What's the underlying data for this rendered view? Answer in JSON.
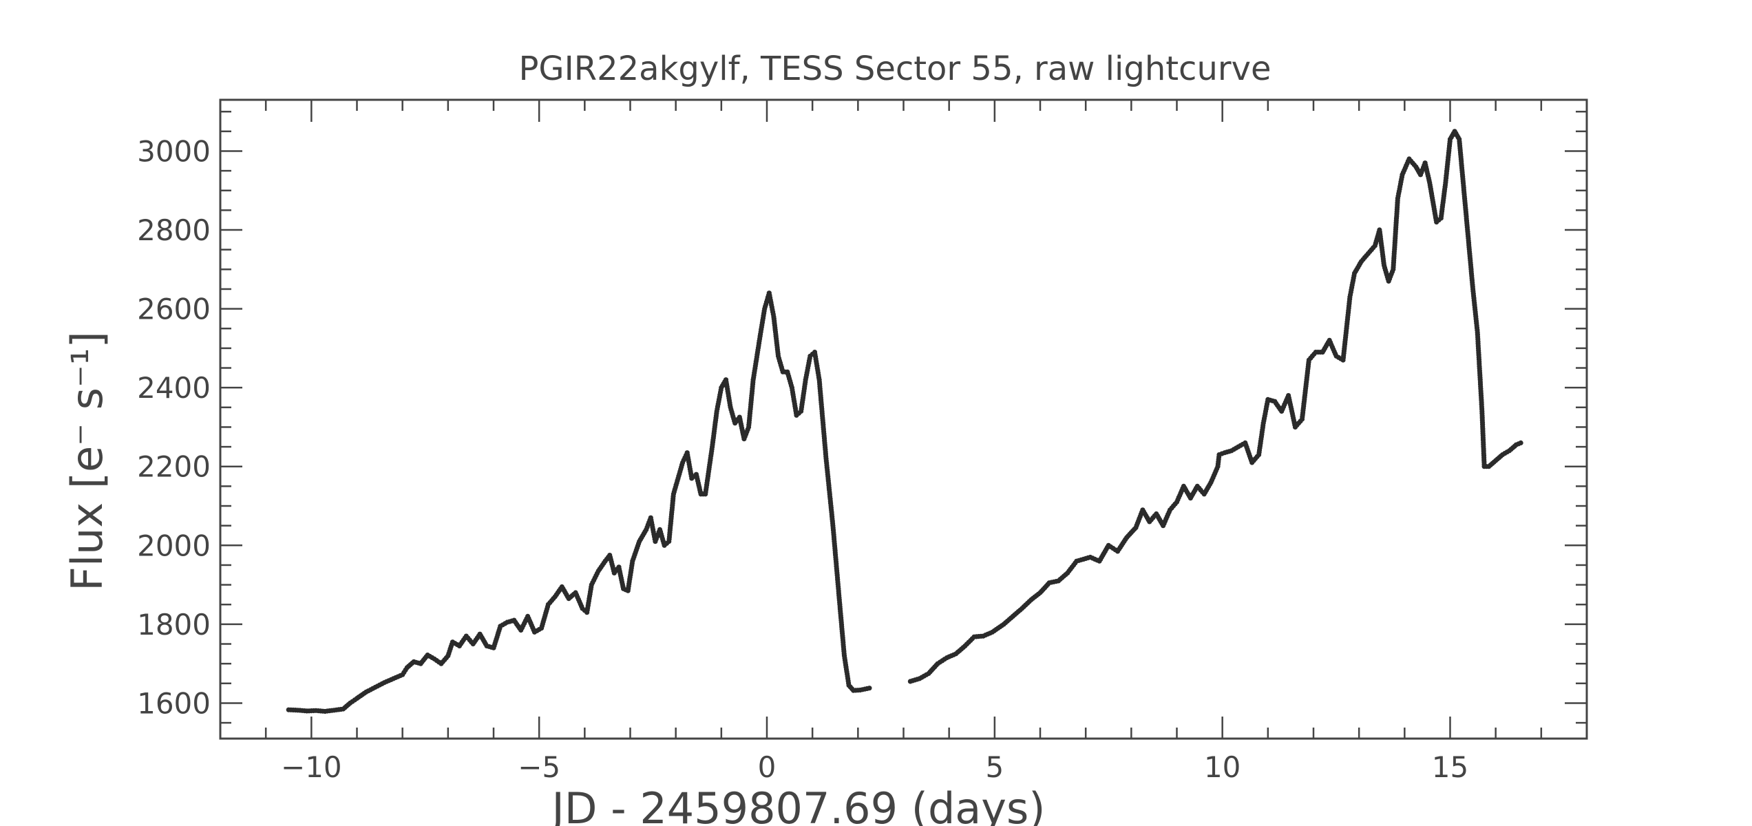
{
  "chart_data": {
    "type": "scatter",
    "title": "PGIR22akgylf, TESS Sector 55, raw lightcurve",
    "xlabel": "JD - 2459807.69 (days)",
    "ylabel": "Flux [e⁻ s⁻¹]",
    "xlim": [
      -12,
      18
    ],
    "ylim": [
      1510,
      3130
    ],
    "xticks": [
      -10,
      -5,
      0,
      5,
      10,
      15
    ],
    "xtick_labels": [
      "−10",
      "−5",
      "0",
      "5",
      "10",
      "15"
    ],
    "yticks": [
      1600,
      1800,
      2000,
      2200,
      2400,
      2600,
      2800,
      3000
    ],
    "ytick_labels": [
      "1600",
      "1800",
      "2000",
      "2200",
      "2400",
      "2600",
      "2800",
      "3000"
    ],
    "grid": false,
    "marker_color": "#2b2b2b",
    "series": [
      {
        "points": [
          [
            -10.5,
            1583
          ],
          [
            -10.3,
            1582
          ],
          [
            -10.1,
            1580
          ],
          [
            -9.9,
            1581
          ],
          [
            -9.7,
            1579
          ],
          [
            -9.5,
            1582
          ],
          [
            -9.3,
            1585
          ],
          [
            -9.15,
            1600
          ],
          [
            -9.0,
            1612
          ],
          [
            -8.8,
            1628
          ],
          [
            -8.6,
            1640
          ],
          [
            -8.4,
            1652
          ],
          [
            -8.2,
            1662
          ],
          [
            -8.0,
            1672
          ],
          [
            -7.9,
            1690
          ],
          [
            -7.75,
            1705
          ],
          [
            -7.6,
            1700
          ],
          [
            -7.45,
            1722
          ],
          [
            -7.3,
            1712
          ],
          [
            -7.15,
            1700
          ],
          [
            -7.0,
            1720
          ],
          [
            -6.9,
            1755
          ],
          [
            -6.75,
            1745
          ],
          [
            -6.6,
            1770
          ],
          [
            -6.45,
            1750
          ],
          [
            -6.3,
            1775
          ],
          [
            -6.15,
            1745
          ],
          [
            -6.0,
            1740
          ],
          [
            -5.85,
            1795
          ],
          [
            -5.7,
            1805
          ],
          [
            -5.55,
            1810
          ],
          [
            -5.4,
            1785
          ],
          [
            -5.25,
            1820
          ],
          [
            -5.1,
            1780
          ],
          [
            -4.95,
            1790
          ],
          [
            -4.8,
            1850
          ],
          [
            -4.65,
            1870
          ],
          [
            -4.5,
            1895
          ],
          [
            -4.35,
            1865
          ],
          [
            -4.2,
            1880
          ],
          [
            -4.05,
            1840
          ],
          [
            -3.95,
            1830
          ],
          [
            -3.85,
            1900
          ],
          [
            -3.7,
            1935
          ],
          [
            -3.55,
            1960
          ],
          [
            -3.45,
            1975
          ],
          [
            -3.35,
            1930
          ],
          [
            -3.25,
            1945
          ],
          [
            -3.15,
            1890
          ],
          [
            -3.05,
            1885
          ],
          [
            -2.95,
            1960
          ],
          [
            -2.8,
            2010
          ],
          [
            -2.65,
            2040
          ],
          [
            -2.55,
            2070
          ],
          [
            -2.45,
            2010
          ],
          [
            -2.35,
            2040
          ],
          [
            -2.25,
            2000
          ],
          [
            -2.15,
            2010
          ],
          [
            -2.05,
            2130
          ],
          [
            -1.95,
            2170
          ],
          [
            -1.85,
            2210
          ],
          [
            -1.75,
            2235
          ],
          [
            -1.65,
            2170
          ],
          [
            -1.55,
            2180
          ],
          [
            -1.45,
            2130
          ],
          [
            -1.35,
            2130
          ],
          [
            -1.2,
            2250
          ],
          [
            -1.1,
            2340
          ],
          [
            -1.0,
            2400
          ],
          [
            -0.9,
            2420
          ],
          [
            -0.8,
            2350
          ],
          [
            -0.7,
            2310
          ],
          [
            -0.6,
            2325
          ],
          [
            -0.5,
            2270
          ],
          [
            -0.4,
            2300
          ],
          [
            -0.3,
            2420
          ],
          [
            -0.15,
            2530
          ],
          [
            -0.05,
            2600
          ],
          [
            0.05,
            2640
          ],
          [
            0.15,
            2580
          ],
          [
            0.25,
            2480
          ],
          [
            0.35,
            2440
          ],
          [
            0.45,
            2440
          ],
          [
            0.55,
            2400
          ],
          [
            0.65,
            2330
          ],
          [
            0.75,
            2340
          ],
          [
            0.85,
            2420
          ],
          [
            0.95,
            2480
          ],
          [
            1.05,
            2490
          ],
          [
            1.15,
            2420
          ],
          [
            1.3,
            2220
          ],
          [
            1.45,
            2050
          ],
          [
            1.6,
            1850
          ],
          [
            1.7,
            1720
          ],
          [
            1.8,
            1645
          ],
          [
            1.9,
            1632
          ],
          [
            2.05,
            1633
          ],
          [
            2.25,
            1638
          ],
          [
            3.15,
            1655
          ],
          [
            3.35,
            1662
          ],
          [
            3.55,
            1675
          ],
          [
            3.75,
            1700
          ],
          [
            3.95,
            1715
          ],
          [
            4.15,
            1725
          ],
          [
            4.35,
            1745
          ],
          [
            4.55,
            1768
          ],
          [
            4.75,
            1770
          ],
          [
            4.95,
            1780
          ],
          [
            5.2,
            1800
          ],
          [
            5.4,
            1820
          ],
          [
            5.6,
            1840
          ],
          [
            5.8,
            1862
          ],
          [
            6.0,
            1880
          ],
          [
            6.2,
            1905
          ],
          [
            6.4,
            1910
          ],
          [
            6.6,
            1930
          ],
          [
            6.8,
            1960
          ],
          [
            6.95,
            1965
          ],
          [
            7.1,
            1970
          ],
          [
            7.3,
            1960
          ],
          [
            7.5,
            2000
          ],
          [
            7.7,
            1985
          ],
          [
            7.9,
            2020
          ],
          [
            8.1,
            2045
          ],
          [
            8.25,
            2090
          ],
          [
            8.4,
            2060
          ],
          [
            8.55,
            2080
          ],
          [
            8.7,
            2050
          ],
          [
            8.85,
            2090
          ],
          [
            9.0,
            2110
          ],
          [
            9.15,
            2150
          ],
          [
            9.3,
            2120
          ],
          [
            9.45,
            2150
          ],
          [
            9.6,
            2130
          ],
          [
            9.75,
            2160
          ],
          [
            9.9,
            2200
          ],
          [
            9.93,
            2230
          ],
          [
            10.05,
            2235
          ],
          [
            10.2,
            2240
          ],
          [
            10.35,
            2250
          ],
          [
            10.5,
            2260
          ],
          [
            10.65,
            2210
          ],
          [
            10.8,
            2230
          ],
          [
            10.9,
            2310
          ],
          [
            11.0,
            2370
          ],
          [
            11.15,
            2365
          ],
          [
            11.3,
            2340
          ],
          [
            11.45,
            2380
          ],
          [
            11.6,
            2300
          ],
          [
            11.75,
            2320
          ],
          [
            11.9,
            2470
          ],
          [
            12.05,
            2490
          ],
          [
            12.2,
            2490
          ],
          [
            12.35,
            2520
          ],
          [
            12.5,
            2480
          ],
          [
            12.65,
            2470
          ],
          [
            12.8,
            2630
          ],
          [
            12.9,
            2690
          ],
          [
            13.05,
            2720
          ],
          [
            13.2,
            2740
          ],
          [
            13.35,
            2760
          ],
          [
            13.45,
            2800
          ],
          [
            13.55,
            2710
          ],
          [
            13.65,
            2670
          ],
          [
            13.75,
            2700
          ],
          [
            13.85,
            2880
          ],
          [
            13.95,
            2940
          ],
          [
            14.1,
            2980
          ],
          [
            14.25,
            2960
          ],
          [
            14.35,
            2940
          ],
          [
            14.45,
            2970
          ],
          [
            14.55,
            2920
          ],
          [
            14.7,
            2820
          ],
          [
            14.8,
            2830
          ],
          [
            14.9,
            2920
          ],
          [
            15.0,
            3030
          ],
          [
            15.1,
            3050
          ],
          [
            15.2,
            3030
          ],
          [
            15.35,
            2840
          ],
          [
            15.5,
            2650
          ],
          [
            15.6,
            2540
          ],
          [
            15.7,
            2340
          ],
          [
            15.75,
            2200
          ],
          [
            15.85,
            2200
          ],
          [
            16.0,
            2215
          ],
          [
            16.15,
            2230
          ],
          [
            16.3,
            2240
          ],
          [
            16.45,
            2255
          ],
          [
            16.55,
            2260
          ]
        ]
      }
    ]
  }
}
